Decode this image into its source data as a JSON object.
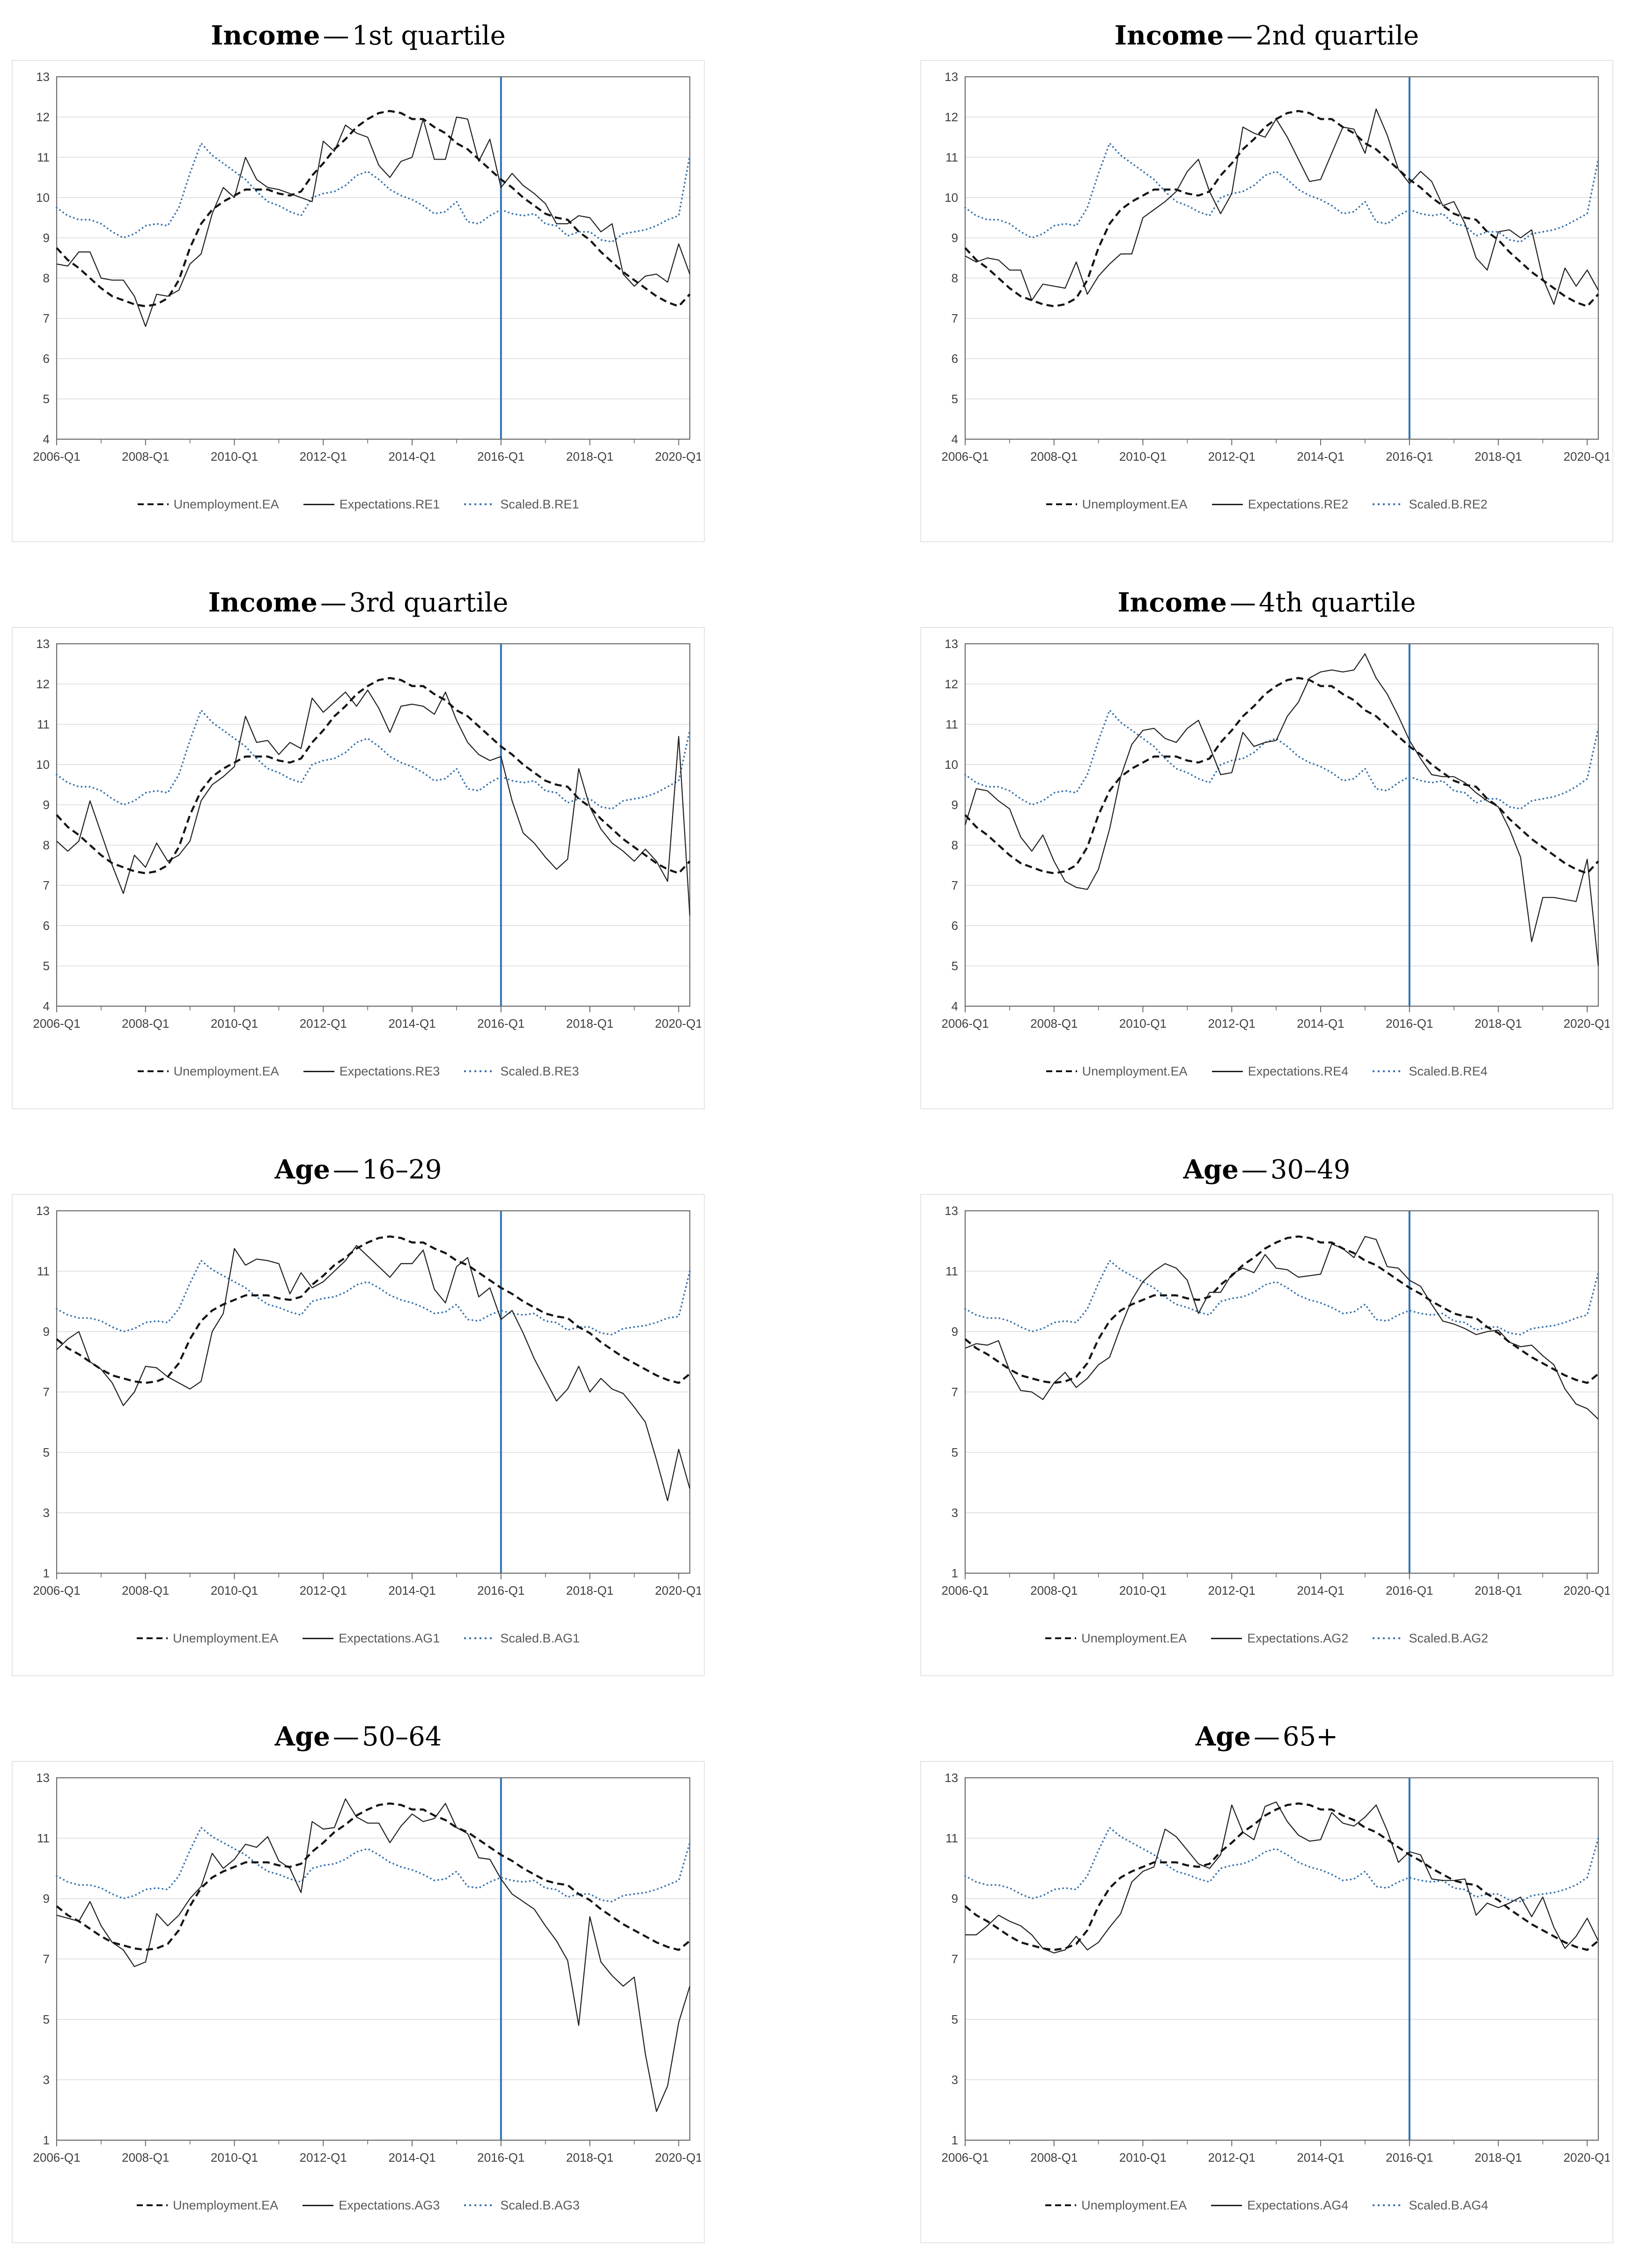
{
  "style": {
    "unemployment_color": "#141414",
    "expectations_color": "#1f1f1f",
    "scaled_color": "#3a74ad",
    "vline_color": "#2e74b5",
    "grid_color": "#d9d9d9",
    "frame_color": "#6b6b6b",
    "tick_label_color": "#3f3f3f",
    "legend_text_color": "#595959",
    "panel_border_color": "#e4e4e4"
  },
  "x_axis": {
    "labels": [
      "2006-Q1",
      "2008-Q1",
      "2010-Q1",
      "2012-Q1",
      "2014-Q1",
      "2016-Q1",
      "2018-Q1",
      "2020-Q1"
    ],
    "label_indices": [
      0,
      8,
      16,
      24,
      32,
      40,
      48,
      56
    ],
    "minor_tick_indices": [
      4,
      12,
      20,
      28,
      36,
      44,
      52
    ],
    "points": 58,
    "vline_index": 40,
    "vline_at": "2016-Q1"
  },
  "unemployment_ea": [
    8.75,
    8.45,
    8.25,
    8.0,
    7.75,
    7.55,
    7.45,
    7.35,
    7.3,
    7.35,
    7.5,
    7.95,
    8.75,
    9.35,
    9.7,
    9.9,
    10.05,
    10.2,
    10.2,
    10.2,
    10.1,
    10.05,
    10.15,
    10.55,
    10.85,
    11.2,
    11.45,
    11.75,
    11.95,
    12.1,
    12.15,
    12.1,
    11.95,
    11.95,
    11.75,
    11.6,
    11.35,
    11.2,
    10.95,
    10.7,
    10.45,
    10.25,
    10.0,
    9.8,
    9.6,
    9.5,
    9.45,
    9.15,
    8.95,
    8.65,
    8.4,
    8.15,
    7.95,
    7.75,
    7.55,
    7.4,
    7.3,
    7.6
  ],
  "chart_data": {
    "type": "line",
    "note": "8 small-multiple line charts; x = quarters 2006-Q1 to 2020-Q2; vertical reference line at 2016-Q1; Unemployment.EA series shared across all panels (see unemployment_ea)."
  },
  "charts": [
    {
      "title_bold": "Income",
      "title_sep": "—",
      "title_rest": "1st quartile",
      "ylim": [
        4,
        13
      ],
      "yticks": [
        4,
        5,
        6,
        7,
        8,
        9,
        10,
        11,
        12,
        13
      ],
      "legend": [
        "Unemployment.EA",
        "Expectations.RE1",
        "Scaled.B.RE1"
      ],
      "expectations": [
        8.35,
        8.3,
        8.65,
        8.65,
        8.0,
        7.95,
        7.95,
        7.55,
        6.8,
        7.6,
        7.55,
        7.7,
        8.35,
        8.6,
        9.6,
        10.25,
        10.0,
        11.0,
        10.45,
        10.25,
        10.2,
        10.1,
        10.0,
        9.9,
        11.4,
        11.15,
        11.8,
        11.6,
        11.5,
        10.8,
        10.5,
        10.9,
        11.0,
        11.95,
        10.95,
        10.95,
        12.0,
        11.95,
        10.9,
        11.45,
        10.25,
        10.6,
        10.3,
        10.1,
        9.85,
        9.35,
        9.35,
        9.55,
        9.5,
        9.15,
        9.35,
        8.1,
        7.8,
        8.05,
        8.1,
        7.9,
        8.85,
        8.1
      ],
      "scaled": [
        9.75,
        9.55,
        9.45,
        9.45,
        9.35,
        9.15,
        9.0,
        9.1,
        9.3,
        9.35,
        9.3,
        9.75,
        10.6,
        11.35,
        11.05,
        10.85,
        10.65,
        10.45,
        10.15,
        9.9,
        9.8,
        9.65,
        9.55,
        10.0,
        10.1,
        10.15,
        10.3,
        10.55,
        10.65,
        10.45,
        10.2,
        10.05,
        9.95,
        9.8,
        9.6,
        9.65,
        9.9,
        9.4,
        9.35,
        9.55,
        9.7,
        9.6,
        9.55,
        9.6,
        9.35,
        9.3,
        9.05,
        9.15,
        9.15,
        8.95,
        8.9,
        9.1,
        9.15,
        9.2,
        9.3,
        9.45,
        9.55,
        11.05
      ]
    },
    {
      "title_bold": "Income",
      "title_sep": "—",
      "title_rest": "2nd quartile",
      "ylim": [
        4,
        13
      ],
      "yticks": [
        4,
        5,
        6,
        7,
        8,
        9,
        10,
        11,
        12,
        13
      ],
      "legend": [
        "Unemployment.EA",
        "Expectations.RE2",
        "Scaled.B.RE2"
      ],
      "expectations": [
        8.55,
        8.4,
        8.5,
        8.45,
        8.2,
        8.2,
        7.45,
        7.85,
        7.8,
        7.75,
        8.4,
        7.6,
        8.05,
        8.35,
        8.6,
        8.6,
        9.5,
        9.7,
        9.9,
        10.15,
        10.65,
        10.95,
        10.15,
        9.6,
        10.1,
        11.75,
        11.6,
        11.5,
        11.95,
        11.5,
        10.95,
        10.4,
        10.45,
        11.1,
        11.75,
        11.7,
        11.1,
        12.2,
        11.55,
        10.7,
        10.35,
        10.65,
        10.4,
        9.8,
        9.9,
        9.35,
        8.5,
        8.2,
        9.15,
        9.2,
        9.0,
        9.2,
        8.0,
        7.35,
        8.25,
        7.8,
        8.2,
        7.7
      ],
      "scaled": [
        9.75,
        9.55,
        9.45,
        9.45,
        9.35,
        9.15,
        9.0,
        9.1,
        9.3,
        9.35,
        9.3,
        9.75,
        10.6,
        11.35,
        11.05,
        10.85,
        10.65,
        10.45,
        10.15,
        9.9,
        9.8,
        9.65,
        9.55,
        10.0,
        10.1,
        10.15,
        10.3,
        10.55,
        10.65,
        10.45,
        10.2,
        10.05,
        9.95,
        9.8,
        9.6,
        9.65,
        9.9,
        9.4,
        9.35,
        9.55,
        9.7,
        9.6,
        9.55,
        9.6,
        9.35,
        9.3,
        9.05,
        9.15,
        9.15,
        8.95,
        8.9,
        9.1,
        9.15,
        9.2,
        9.3,
        9.45,
        9.6,
        10.95
      ]
    },
    {
      "title_bold": "Income",
      "title_sep": "—",
      "title_rest": "3rd quartile",
      "ylim": [
        4,
        13
      ],
      "yticks": [
        4,
        5,
        6,
        7,
        8,
        9,
        10,
        11,
        12,
        13
      ],
      "legend": [
        "Unemployment.EA",
        "Expectations.RE3",
        "Scaled.B.RE3"
      ],
      "expectations": [
        8.1,
        7.85,
        8.1,
        9.1,
        8.3,
        7.5,
        6.8,
        7.75,
        7.45,
        8.05,
        7.6,
        7.75,
        8.1,
        9.1,
        9.5,
        9.7,
        9.95,
        11.2,
        10.55,
        10.6,
        10.25,
        10.55,
        10.4,
        11.65,
        11.3,
        11.55,
        11.8,
        11.45,
        11.85,
        11.4,
        10.8,
        11.45,
        11.5,
        11.45,
        11.25,
        11.8,
        11.1,
        10.55,
        10.25,
        10.1,
        10.2,
        9.1,
        8.3,
        8.05,
        7.7,
        7.4,
        7.65,
        9.9,
        8.95,
        8.4,
        8.05,
        7.85,
        7.6,
        7.9,
        7.6,
        7.1,
        10.7,
        6.25
      ],
      "scaled": [
        9.75,
        9.55,
        9.45,
        9.45,
        9.35,
        9.15,
        9.0,
        9.1,
        9.3,
        9.35,
        9.3,
        9.75,
        10.6,
        11.35,
        11.05,
        10.85,
        10.65,
        10.45,
        10.15,
        9.9,
        9.8,
        9.65,
        9.55,
        10.0,
        10.1,
        10.15,
        10.3,
        10.55,
        10.65,
        10.45,
        10.2,
        10.05,
        9.95,
        9.8,
        9.6,
        9.65,
        9.9,
        9.4,
        9.35,
        9.55,
        9.7,
        9.6,
        9.55,
        9.6,
        9.35,
        9.3,
        9.05,
        9.15,
        9.15,
        8.95,
        8.9,
        9.1,
        9.15,
        9.2,
        9.3,
        9.45,
        9.6,
        10.85
      ]
    },
    {
      "title_bold": "Income",
      "title_sep": "—",
      "title_rest": "4th quartile",
      "ylim": [
        4,
        13
      ],
      "yticks": [
        4,
        5,
        6,
        7,
        8,
        9,
        10,
        11,
        12,
        13
      ],
      "legend": [
        "Unemployment.EA",
        "Expectations.RE4",
        "Scaled.B.RE4"
      ],
      "expectations": [
        8.5,
        9.4,
        9.35,
        9.1,
        8.9,
        8.2,
        7.85,
        8.25,
        7.6,
        7.1,
        6.95,
        6.9,
        7.4,
        8.4,
        9.7,
        10.5,
        10.85,
        10.9,
        10.65,
        10.55,
        10.9,
        11.1,
        10.45,
        9.75,
        9.8,
        10.8,
        10.45,
        10.55,
        10.6,
        11.2,
        11.55,
        12.15,
        12.3,
        12.35,
        12.3,
        12.35,
        12.75,
        12.15,
        11.75,
        11.2,
        10.6,
        10.15,
        9.75,
        9.7,
        9.7,
        9.55,
        9.3,
        9.1,
        8.95,
        8.4,
        7.7,
        5.6,
        6.7,
        6.7,
        6.65,
        6.6,
        7.65,
        5.0
      ],
      "scaled": [
        9.75,
        9.55,
        9.45,
        9.45,
        9.35,
        9.15,
        9.0,
        9.1,
        9.3,
        9.35,
        9.3,
        9.75,
        10.6,
        11.35,
        11.05,
        10.85,
        10.65,
        10.45,
        10.15,
        9.9,
        9.8,
        9.65,
        9.55,
        10.0,
        10.1,
        10.15,
        10.3,
        10.55,
        10.65,
        10.45,
        10.2,
        10.05,
        9.95,
        9.8,
        9.6,
        9.65,
        9.9,
        9.4,
        9.35,
        9.55,
        9.7,
        9.6,
        9.55,
        9.6,
        9.35,
        9.3,
        9.05,
        9.15,
        9.15,
        8.95,
        8.9,
        9.1,
        9.15,
        9.2,
        9.3,
        9.45,
        9.65,
        10.9
      ]
    },
    {
      "title_bold": "Age",
      "title_sep": "—",
      "title_rest": "16–29",
      "ylim": [
        1,
        13
      ],
      "yticks": [
        1,
        3,
        5,
        7,
        9,
        11,
        13
      ],
      "legend": [
        "Unemployment.EA",
        "Expectations.AG1",
        "Scaled.B.AG1"
      ],
      "expectations": [
        8.4,
        8.75,
        9.0,
        8.0,
        7.75,
        7.3,
        6.55,
        7.0,
        7.85,
        7.8,
        7.5,
        7.3,
        7.1,
        7.35,
        9.0,
        9.6,
        11.75,
        11.2,
        11.4,
        11.35,
        11.25,
        10.25,
        10.95,
        10.45,
        10.65,
        11.0,
        11.35,
        11.85,
        11.5,
        11.15,
        10.8,
        11.25,
        11.25,
        11.7,
        10.4,
        9.95,
        11.15,
        11.45,
        10.15,
        10.45,
        9.4,
        9.7,
        8.95,
        8.1,
        7.4,
        6.7,
        7.1,
        7.85,
        7.0,
        7.45,
        7.1,
        6.95,
        6.5,
        6.0,
        4.75,
        3.4,
        5.1,
        3.8
      ],
      "scaled": [
        9.75,
        9.55,
        9.45,
        9.45,
        9.35,
        9.15,
        9.0,
        9.1,
        9.3,
        9.35,
        9.3,
        9.75,
        10.6,
        11.35,
        11.05,
        10.85,
        10.65,
        10.45,
        10.15,
        9.9,
        9.8,
        9.65,
        9.55,
        10.0,
        10.1,
        10.15,
        10.3,
        10.55,
        10.65,
        10.45,
        10.2,
        10.05,
        9.95,
        9.8,
        9.6,
        9.65,
        9.9,
        9.4,
        9.35,
        9.55,
        9.7,
        9.6,
        9.55,
        9.6,
        9.35,
        9.3,
        9.05,
        9.15,
        9.15,
        8.95,
        8.9,
        9.1,
        9.15,
        9.2,
        9.3,
        9.45,
        9.5,
        11.0
      ]
    },
    {
      "title_bold": "Age",
      "title_sep": "—",
      "title_rest": "30–49",
      "ylim": [
        1,
        13
      ],
      "yticks": [
        1,
        3,
        5,
        7,
        9,
        11,
        13
      ],
      "legend": [
        "Unemployment.EA",
        "Expectations.AG2",
        "Scaled.B.AG2"
      ],
      "expectations": [
        8.45,
        8.6,
        8.55,
        8.7,
        7.7,
        7.05,
        7.0,
        6.75,
        7.3,
        7.65,
        7.15,
        7.45,
        7.9,
        8.15,
        9.15,
        10.05,
        10.65,
        11.0,
        11.25,
        11.1,
        10.7,
        9.6,
        10.3,
        10.3,
        10.9,
        11.1,
        10.95,
        11.55,
        11.1,
        11.05,
        10.8,
        10.85,
        10.9,
        11.9,
        11.75,
        11.45,
        12.15,
        12.05,
        11.15,
        11.1,
        10.7,
        10.5,
        9.9,
        9.35,
        9.25,
        9.1,
        8.9,
        9.0,
        9.05,
        8.65,
        8.5,
        8.55,
        8.2,
        7.9,
        7.1,
        6.6,
        6.45,
        6.1
      ],
      "scaled": [
        9.75,
        9.55,
        9.45,
        9.45,
        9.35,
        9.15,
        9.0,
        9.1,
        9.3,
        9.35,
        9.3,
        9.75,
        10.6,
        11.35,
        11.05,
        10.85,
        10.65,
        10.45,
        10.15,
        9.9,
        9.8,
        9.65,
        9.55,
        10.0,
        10.1,
        10.15,
        10.3,
        10.55,
        10.65,
        10.45,
        10.2,
        10.05,
        9.95,
        9.8,
        9.6,
        9.65,
        9.9,
        9.4,
        9.35,
        9.55,
        9.7,
        9.6,
        9.55,
        9.6,
        9.35,
        9.3,
        9.05,
        9.15,
        9.15,
        8.95,
        8.9,
        9.1,
        9.15,
        9.2,
        9.3,
        9.45,
        9.55,
        10.95
      ]
    },
    {
      "title_bold": "Age",
      "title_sep": "—",
      "title_rest": "50–64",
      "ylim": [
        1,
        13
      ],
      "yticks": [
        1,
        3,
        5,
        7,
        9,
        11,
        13
      ],
      "legend": [
        "Unemployment.EA",
        "Expectations.AG3",
        "Scaled.B.AG3"
      ],
      "expectations": [
        8.45,
        8.35,
        8.25,
        8.9,
        8.1,
        7.55,
        7.3,
        6.75,
        6.9,
        8.5,
        8.1,
        8.45,
        9.0,
        9.4,
        10.5,
        10.0,
        10.3,
        10.8,
        10.7,
        11.05,
        10.25,
        10.0,
        9.2,
        11.55,
        11.3,
        11.35,
        12.3,
        11.7,
        11.5,
        11.5,
        10.85,
        11.4,
        11.8,
        11.55,
        11.65,
        12.15,
        11.35,
        11.15,
        10.35,
        10.3,
        9.65,
        9.15,
        8.9,
        8.65,
        8.1,
        7.6,
        6.95,
        4.8,
        8.4,
        6.9,
        6.45,
        6.1,
        6.4,
        3.85,
        1.95,
        2.8,
        4.9,
        6.1
      ],
      "scaled": [
        9.75,
        9.55,
        9.45,
        9.45,
        9.35,
        9.15,
        9.0,
        9.1,
        9.3,
        9.35,
        9.3,
        9.75,
        10.6,
        11.35,
        11.05,
        10.85,
        10.65,
        10.45,
        10.15,
        9.9,
        9.8,
        9.65,
        9.55,
        10.0,
        10.1,
        10.15,
        10.3,
        10.55,
        10.65,
        10.45,
        10.2,
        10.05,
        9.95,
        9.8,
        9.6,
        9.65,
        9.9,
        9.4,
        9.35,
        9.55,
        9.7,
        9.6,
        9.55,
        9.6,
        9.35,
        9.3,
        9.05,
        9.15,
        9.15,
        8.95,
        8.9,
        9.1,
        9.15,
        9.2,
        9.3,
        9.45,
        9.6,
        10.85
      ]
    },
    {
      "title_bold": "Age",
      "title_sep": "—",
      "title_rest": "65+",
      "ylim": [
        1,
        13
      ],
      "yticks": [
        1,
        3,
        5,
        7,
        9,
        11,
        13
      ],
      "legend": [
        "Unemployment.EA",
        "Expectations.AG4",
        "Scaled.B.AG4"
      ],
      "expectations": [
        7.8,
        7.8,
        8.1,
        8.45,
        8.25,
        8.1,
        7.8,
        7.35,
        7.2,
        7.3,
        7.75,
        7.3,
        7.55,
        8.05,
        8.5,
        9.55,
        9.9,
        10.05,
        11.3,
        11.05,
        10.6,
        10.15,
        10.0,
        10.45,
        12.1,
        11.2,
        10.95,
        12.05,
        12.2,
        11.55,
        11.1,
        10.9,
        10.95,
        11.85,
        11.5,
        11.4,
        11.7,
        12.1,
        11.25,
        10.2,
        10.55,
        10.45,
        9.65,
        9.6,
        9.6,
        9.65,
        8.45,
        8.85,
        8.7,
        8.85,
        9.05,
        8.4,
        9.05,
        8.05,
        7.35,
        7.75,
        8.35,
        7.6
      ],
      "scaled": [
        9.75,
        9.55,
        9.45,
        9.45,
        9.35,
        9.15,
        9.0,
        9.1,
        9.3,
        9.35,
        9.3,
        9.75,
        10.6,
        11.35,
        11.05,
        10.85,
        10.65,
        10.45,
        10.15,
        9.9,
        9.8,
        9.65,
        9.55,
        10.0,
        10.1,
        10.15,
        10.3,
        10.55,
        10.65,
        10.45,
        10.2,
        10.05,
        9.95,
        9.8,
        9.6,
        9.65,
        9.9,
        9.4,
        9.35,
        9.55,
        9.7,
        9.6,
        9.55,
        9.6,
        9.35,
        9.3,
        9.05,
        9.15,
        9.15,
        8.95,
        8.9,
        9.1,
        9.15,
        9.2,
        9.3,
        9.45,
        9.7,
        11.0
      ]
    }
  ]
}
